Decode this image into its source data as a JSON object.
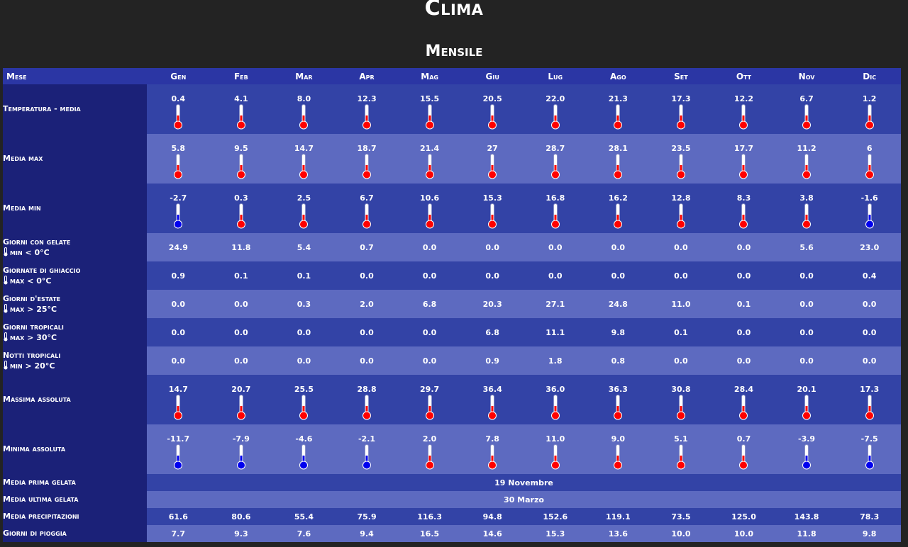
{
  "page_title": "Clima",
  "section_title": "Mensile",
  "header_label": "Mese",
  "months": [
    "Gen",
    "Feb",
    "Mar",
    "Apr",
    "Mag",
    "Giu",
    "Lug",
    "Ago",
    "Set",
    "Ott",
    "Nov",
    "Dic"
  ],
  "colors": {
    "warm": "#ff0000",
    "cold": "#0000ee"
  },
  "rows": [
    {
      "type": "therm",
      "label": "Temperatura - media",
      "values": [
        0.4,
        4.1,
        8.0,
        12.3,
        15.5,
        20.5,
        22.0,
        21.3,
        17.3,
        12.2,
        6.7,
        1.2
      ],
      "display": [
        "0.4",
        "4.1",
        "8.0",
        "12.3",
        "15.5",
        "20.5",
        "22.0",
        "21.3",
        "17.3",
        "12.2",
        "6.7",
        "1.2"
      ]
    },
    {
      "type": "therm",
      "label": "Media max",
      "values": [
        5.8,
        9.5,
        14.7,
        18.7,
        21.4,
        27,
        28.7,
        28.1,
        23.5,
        17.7,
        11.2,
        6
      ],
      "display": [
        "5.8",
        "9.5",
        "14.7",
        "18.7",
        "21.4",
        "27",
        "28.7",
        "28.1",
        "23.5",
        "17.7",
        "11.2",
        "6"
      ]
    },
    {
      "type": "therm",
      "label": "Media min",
      "values": [
        -2.7,
        0.3,
        2.5,
        6.7,
        10.6,
        15.3,
        16.8,
        16.2,
        12.8,
        8.3,
        3.8,
        -1.6
      ],
      "display": [
        "-2.7",
        "0.3",
        "2.5",
        "6.7",
        "10.6",
        "15.3",
        "16.8",
        "16.2",
        "12.8",
        "8.3",
        "3.8",
        "-1.6"
      ]
    },
    {
      "type": "count",
      "label": "Giorni con gelate",
      "sub": "min < 0°C",
      "display": [
        "24.9",
        "11.8",
        "5.4",
        "0.7",
        "0.0",
        "0.0",
        "0.0",
        "0.0",
        "0.0",
        "0.0",
        "5.6",
        "23.0"
      ]
    },
    {
      "type": "count",
      "label": "Giornate di ghiaccio",
      "sub": "max < 0°C",
      "display": [
        "0.9",
        "0.1",
        "0.1",
        "0.0",
        "0.0",
        "0.0",
        "0.0",
        "0.0",
        "0.0",
        "0.0",
        "0.0",
        "0.4"
      ]
    },
    {
      "type": "count",
      "label": "Giorni d'estate",
      "sub": "max > 25°C",
      "display": [
        "0.0",
        "0.0",
        "0.3",
        "2.0",
        "6.8",
        "20.3",
        "27.1",
        "24.8",
        "11.0",
        "0.1",
        "0.0",
        "0.0"
      ]
    },
    {
      "type": "count",
      "label": "Giorni tropicali",
      "sub": "max > 30°C",
      "display": [
        "0.0",
        "0.0",
        "0.0",
        "0.0",
        "0.0",
        "6.8",
        "11.1",
        "9.8",
        "0.1",
        "0.0",
        "0.0",
        "0.0"
      ]
    },
    {
      "type": "count",
      "label": "Notti tropicali",
      "sub": "min > 20°C",
      "display": [
        "0.0",
        "0.0",
        "0.0",
        "0.0",
        "0.0",
        "0.9",
        "1.8",
        "0.8",
        "0.0",
        "0.0",
        "0.0",
        "0.0"
      ]
    },
    {
      "type": "therm",
      "label": "Massima assoluta",
      "values": [
        14.7,
        20.7,
        25.5,
        28.8,
        29.7,
        36.4,
        36.0,
        36.3,
        30.8,
        28.4,
        20.1,
        17.3
      ],
      "display": [
        "14.7",
        "20.7",
        "25.5",
        "28.8",
        "29.7",
        "36.4",
        "36.0",
        "36.3",
        "30.8",
        "28.4",
        "20.1",
        "17.3"
      ]
    },
    {
      "type": "therm",
      "label": "Minima assoluta",
      "values": [
        -11.7,
        -7.9,
        -4.6,
        -2.1,
        2.0,
        7.8,
        11.0,
        9.0,
        5.1,
        0.7,
        -3.9,
        -7.5
      ],
      "display": [
        "-11.7",
        "-7.9",
        "-4.6",
        "-2.1",
        "2.0",
        "7.8",
        "11.0",
        "9.0",
        "5.1",
        "0.7",
        "-3.9",
        "-7.5"
      ]
    },
    {
      "type": "span",
      "label": "Media prima gelata",
      "value": "19 Novembre"
    },
    {
      "type": "span",
      "label": "Media ultima gelata",
      "value": "30 Marzo"
    },
    {
      "type": "thin",
      "label": "Media precipitazioni",
      "display": [
        "61.6",
        "80.6",
        "55.4",
        "75.9",
        "116.3",
        "94.8",
        "152.6",
        "119.1",
        "73.5",
        "125.0",
        "143.8",
        "78.3"
      ]
    },
    {
      "type": "thin",
      "label": "Giorni di pioggia",
      "display": [
        "7.7",
        "9.3",
        "7.6",
        "9.4",
        "16.5",
        "14.6",
        "15.3",
        "13.6",
        "10.0",
        "10.0",
        "11.8",
        "9.8"
      ]
    }
  ]
}
